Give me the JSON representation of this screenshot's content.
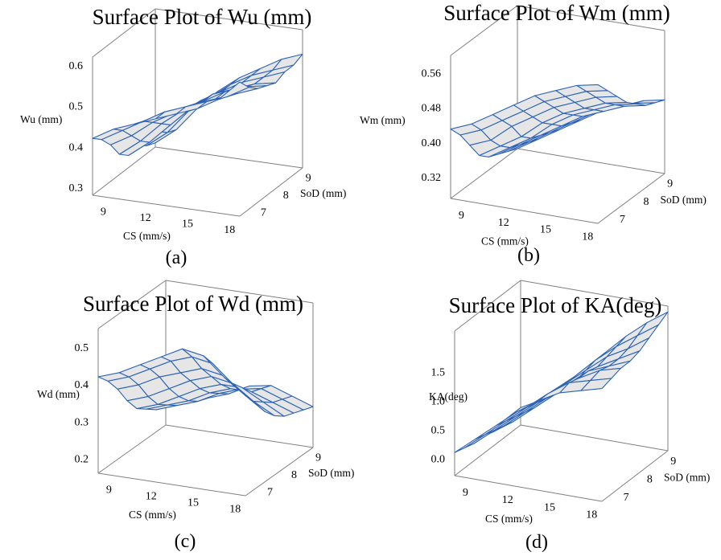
{
  "chart_data": [
    {
      "type": "surface",
      "title": "Surface Plot of Wu (mm)",
      "caption": "(a)",
      "x": {
        "label": "CS (mm/s)",
        "ticks": [
          "9",
          "12",
          "15",
          "18"
        ],
        "range": [
          8,
          18.5
        ]
      },
      "y": {
        "label": "SoD (mm)",
        "ticks": [
          "7",
          "8",
          "9"
        ],
        "range": [
          6.5,
          9.3
        ]
      },
      "z": {
        "label": "Wu (mm)",
        "ticks": [
          "0.3",
          "0.4",
          "0.5",
          "0.6"
        ],
        "range": [
          0.28,
          0.62
        ]
      },
      "grid_x": [
        8.0,
        9.5,
        11.0,
        12.5,
        14.0,
        15.5,
        17.0,
        18.5
      ],
      "grid_y": [
        6.5,
        6.9,
        7.3,
        7.7,
        8.1,
        8.5,
        8.9,
        9.3
      ],
      "values": [
        [
          0.42,
          0.45,
          0.47,
          0.49,
          0.51,
          0.53,
          0.56,
          0.61
        ],
        [
          0.4,
          0.43,
          0.46,
          0.49,
          0.51,
          0.53,
          0.55,
          0.58
        ],
        [
          0.37,
          0.4,
          0.44,
          0.47,
          0.5,
          0.52,
          0.54,
          0.56
        ],
        [
          0.33,
          0.37,
          0.42,
          0.46,
          0.49,
          0.52,
          0.54,
          0.55
        ],
        [
          0.31,
          0.35,
          0.4,
          0.45,
          0.49,
          0.51,
          0.53,
          0.54
        ],
        [
          0.32,
          0.36,
          0.41,
          0.45,
          0.48,
          0.51,
          0.53,
          0.55
        ],
        [
          0.3,
          0.34,
          0.4,
          0.44,
          0.48,
          0.51,
          0.53,
          0.55
        ],
        [
          0.29,
          0.33,
          0.39,
          0.44,
          0.48,
          0.51,
          0.54,
          0.56
        ]
      ]
    },
    {
      "type": "surface",
      "title": "Surface Plot of Wm (mm)",
      "caption": "(b)",
      "x": {
        "label": "CS (mm/s)",
        "ticks": [
          "9",
          "12",
          "15",
          "18"
        ],
        "range": [
          8,
          18.5
        ]
      },
      "y": {
        "label": "SoD (mm)",
        "ticks": [
          "7",
          "8",
          "9"
        ],
        "range": [
          6.5,
          9.3
        ]
      },
      "z": {
        "label": "Wm (mm)",
        "ticks": [
          "0.32",
          "0.40",
          "0.48",
          "0.56"
        ],
        "range": [
          0.27,
          0.6
        ]
      },
      "grid_x": [
        8.0,
        9.5,
        11.0,
        12.5,
        14.0,
        15.5,
        17.0,
        18.5
      ],
      "grid_y": [
        6.5,
        6.9,
        7.3,
        7.7,
        8.1,
        8.5,
        8.9,
        9.3
      ],
      "values": [
        [
          0.43,
          0.45,
          0.48,
          0.51,
          0.54,
          0.56,
          0.58,
          0.59
        ],
        [
          0.4,
          0.42,
          0.45,
          0.48,
          0.51,
          0.53,
          0.55,
          0.56
        ],
        [
          0.36,
          0.38,
          0.42,
          0.45,
          0.48,
          0.5,
          0.52,
          0.53
        ],
        [
          0.32,
          0.35,
          0.38,
          0.42,
          0.45,
          0.47,
          0.49,
          0.5
        ],
        [
          0.3,
          0.33,
          0.36,
          0.4,
          0.43,
          0.45,
          0.47,
          0.48
        ],
        [
          0.29,
          0.32,
          0.35,
          0.38,
          0.41,
          0.43,
          0.45,
          0.46
        ],
        [
          0.28,
          0.31,
          0.34,
          0.37,
          0.4,
          0.42,
          0.44,
          0.45
        ],
        [
          0.27,
          0.3,
          0.33,
          0.36,
          0.39,
          0.41,
          0.43,
          0.44
        ]
      ]
    },
    {
      "type": "surface",
      "title": "Surface Plot of Wd (mm)",
      "caption": "(c)",
      "x": {
        "label": "CS (mm/s)",
        "ticks": [
          "9",
          "12",
          "15",
          "18"
        ],
        "range": [
          8,
          18.5
        ]
      },
      "y": {
        "label": "SoD (mm)",
        "ticks": [
          "7",
          "8",
          "9"
        ],
        "range": [
          6.5,
          9.3
        ]
      },
      "z": {
        "label": "Wd (mm)",
        "ticks": [
          "0.2",
          "0.3",
          "0.4",
          "0.5"
        ],
        "range": [
          0.16,
          0.55
        ]
      },
      "grid_x": [
        8.0,
        9.5,
        11.0,
        12.5,
        14.0,
        15.5,
        17.0,
        18.5
      ],
      "grid_y": [
        6.5,
        6.9,
        7.3,
        7.7,
        8.1,
        8.5,
        8.9,
        9.3
      ],
      "values": [
        [
          0.42,
          0.44,
          0.47,
          0.5,
          0.53,
          0.52,
          0.47,
          0.43
        ],
        [
          0.39,
          0.41,
          0.44,
          0.47,
          0.49,
          0.48,
          0.43,
          0.39
        ],
        [
          0.35,
          0.37,
          0.4,
          0.42,
          0.44,
          0.43,
          0.39,
          0.35
        ],
        [
          0.3,
          0.32,
          0.35,
          0.38,
          0.4,
          0.39,
          0.35,
          0.32
        ],
        [
          0.26,
          0.28,
          0.31,
          0.34,
          0.36,
          0.36,
          0.33,
          0.3
        ],
        [
          0.24,
          0.26,
          0.28,
          0.31,
          0.33,
          0.33,
          0.31,
          0.29
        ],
        [
          0.22,
          0.24,
          0.26,
          0.29,
          0.31,
          0.32,
          0.3,
          0.28
        ],
        [
          0.21,
          0.23,
          0.25,
          0.27,
          0.3,
          0.31,
          0.29,
          0.27
        ]
      ]
    },
    {
      "type": "surface",
      "title": "Surface Plot of KA(deg)",
      "caption": "(d)",
      "x": {
        "label": "CS (mm/s)",
        "ticks": [
          "9",
          "12",
          "15",
          "18"
        ],
        "range": [
          8,
          18.5
        ]
      },
      "y": {
        "label": "SoD (mm)",
        "ticks": [
          "7",
          "8",
          "9"
        ],
        "range": [
          6.5,
          9.3
        ]
      },
      "z": {
        "label": "KA(deg)",
        "ticks": [
          "0.0",
          "0.5",
          "1.0",
          "1.5"
        ],
        "range": [
          -0.3,
          2.2
        ]
      },
      "grid_x": [
        8.0,
        9.5,
        11.0,
        12.5,
        14.0,
        15.5,
        17.0,
        18.5
      ],
      "grid_y": [
        6.5,
        6.9,
        7.3,
        7.7,
        8.1,
        8.5,
        8.9,
        9.3
      ],
      "values": [
        [
          0.1,
          0.4,
          0.7,
          1.0,
          1.25,
          1.45,
          1.55,
          1.65
        ],
        [
          0.05,
          0.35,
          0.65,
          0.95,
          1.25,
          1.5,
          1.6,
          1.7
        ],
        [
          0.0,
          0.3,
          0.6,
          0.9,
          1.2,
          1.45,
          1.65,
          1.75
        ],
        [
          0.0,
          0.25,
          0.55,
          0.85,
          1.15,
          1.45,
          1.6,
          1.75
        ],
        [
          -0.05,
          0.2,
          0.5,
          0.8,
          1.1,
          1.4,
          1.6,
          1.8
        ],
        [
          0.0,
          0.25,
          0.55,
          0.85,
          1.15,
          1.45,
          1.65,
          1.9
        ],
        [
          0.0,
          0.25,
          0.55,
          0.85,
          1.2,
          1.5,
          1.75,
          2.0
        ],
        [
          0.0,
          0.2,
          0.5,
          0.85,
          1.2,
          1.55,
          1.85,
          2.1
        ]
      ]
    }
  ]
}
